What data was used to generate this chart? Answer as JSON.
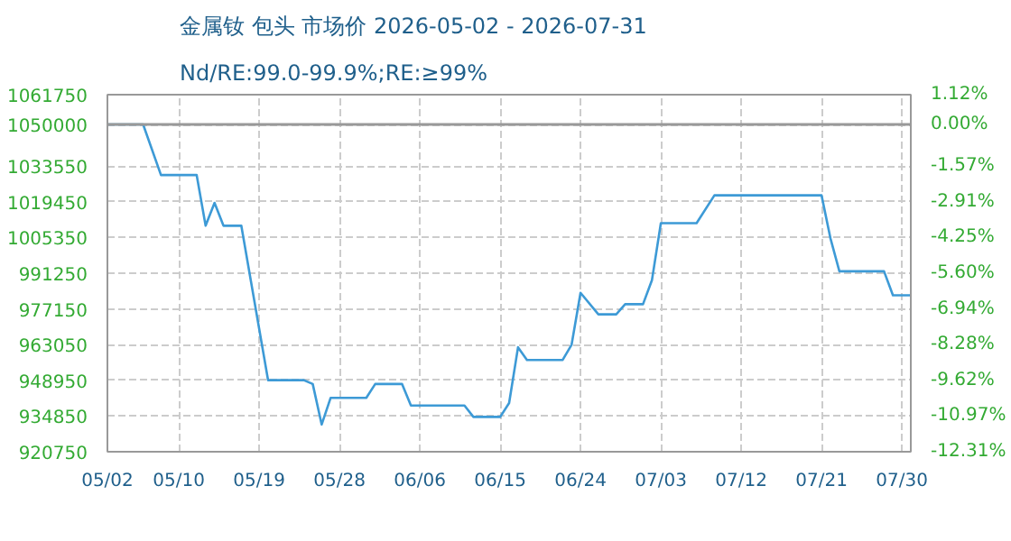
{
  "chart_data": {
    "type": "line",
    "title": "金属钕 包头 市场价 2026-05-02 - 2026-07-31",
    "subtitle": "Nd/RE:99.0-99.9%;RE:≥99%",
    "x": [
      "2026-05-02",
      "2026-05-06",
      "2026-05-08",
      "2026-05-12",
      "2026-05-13",
      "2026-05-14",
      "2026-05-15",
      "2026-05-17",
      "2026-05-20",
      "2026-05-24",
      "2026-05-25",
      "2026-05-26",
      "2026-05-27",
      "2026-05-31",
      "2026-06-01",
      "2026-06-04",
      "2026-06-05",
      "2026-06-11",
      "2026-06-12",
      "2026-06-15",
      "2026-06-16",
      "2026-06-17",
      "2026-06-18",
      "2026-06-22",
      "2026-06-23",
      "2026-06-24",
      "2026-06-26",
      "2026-06-28",
      "2026-06-29",
      "2026-07-01",
      "2026-07-02",
      "2026-07-03",
      "2026-07-07",
      "2026-07-09",
      "2026-07-21",
      "2026-07-22",
      "2026-07-23",
      "2026-07-28",
      "2026-07-29",
      "2026-07-31"
    ],
    "series": [
      {
        "color": "#3d9ad6",
        "values": [
          1050000,
          1050000,
          1030000,
          1030000,
          1010000,
          1019000,
          1010000,
          1010000,
          949000,
          949000,
          947500,
          931500,
          942000,
          942000,
          947500,
          947500,
          939000,
          939000,
          934500,
          934500,
          940000,
          962000,
          957000,
          957000,
          963000,
          983500,
          975000,
          975000,
          979000,
          979000,
          988500,
          1011000,
          1011000,
          1022000,
          1022000,
          1005000,
          992000,
          992000,
          982500,
          982500
        ]
      }
    ],
    "xlim": [
      "2026-05-02",
      "2026-07-31"
    ],
    "xticks": [
      {
        "value": "2026-05-02",
        "label": "05/02"
      },
      {
        "value": "2026-05-10",
        "label": "05/10"
      },
      {
        "value": "2026-05-19",
        "label": "05/19"
      },
      {
        "value": "2026-05-28",
        "label": "05/28"
      },
      {
        "value": "2026-06-06",
        "label": "06/06"
      },
      {
        "value": "2026-06-15",
        "label": "06/15"
      },
      {
        "value": "2026-06-24",
        "label": "06/24"
      },
      {
        "value": "2026-07-03",
        "label": "07/03"
      },
      {
        "value": "2026-07-12",
        "label": "07/12"
      },
      {
        "value": "2026-07-21",
        "label": "07/21"
      },
      {
        "value": "2026-07-30",
        "label": "07/30"
      }
    ],
    "ylim": [
      920750,
      1061750
    ],
    "yticks": [
      920750,
      934850,
      948950,
      963050,
      977150,
      991250,
      1005350,
      1019450,
      1033550,
      1050000,
      1061750
    ],
    "y2lim": [
      -12.31,
      1.12
    ],
    "y2ticks": [
      {
        "value": -12.31,
        "label": "-12.31%"
      },
      {
        "value": -10.97,
        "label": "-10.97%"
      },
      {
        "value": -9.62,
        "label": "-9.62%"
      },
      {
        "value": -8.28,
        "label": "-8.28%"
      },
      {
        "value": -6.94,
        "label": "-6.94%"
      },
      {
        "value": -5.6,
        "label": "-5.60%"
      },
      {
        "value": -4.25,
        "label": "-4.25%"
      },
      {
        "value": -2.91,
        "label": "-2.91%"
      },
      {
        "value": -1.57,
        "label": "-1.57%"
      },
      {
        "value": 0,
        "label": "0.00%"
      },
      {
        "value": 1.12,
        "label": "1.12%"
      }
    ],
    "ref_lines": [
      {
        "axis": "y",
        "value": 1050000,
        "color": "#999999",
        "line_style": "solid"
      }
    ],
    "grid": true,
    "marker": "none",
    "line_style": "solid"
  }
}
